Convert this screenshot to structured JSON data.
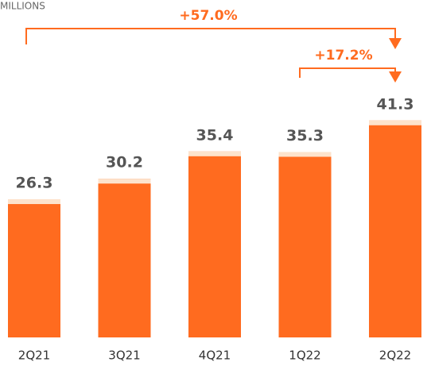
{
  "chart_data": {
    "type": "bar",
    "subtitle": "MILLIONS",
    "categories": [
      "2Q21",
      "3Q21",
      "4Q21",
      "1Q22",
      "2Q22"
    ],
    "values": [
      26.3,
      30.2,
      35.4,
      35.3,
      41.3
    ],
    "color": "#ff6b1f",
    "cap_color": "#fde3cc",
    "annotations": [
      "+57.0%",
      "+17.2%"
    ]
  }
}
